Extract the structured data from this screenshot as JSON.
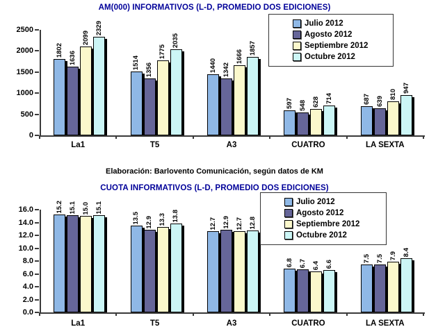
{
  "page": {
    "background": "#FFFFFF"
  },
  "source_note": "Elaboración: Barlovento Comunicación, según datos de KM",
  "colors": {
    "title_text": "#000099",
    "axis_line": "#3A3A3A",
    "label_text": "#000000",
    "bar_border": "#000000",
    "bar_shadow": "#000000",
    "legend_border": "#333333",
    "legend_background": "#FFFFFF",
    "series_fills": [
      "#8FB8E6",
      "#666699",
      "#FBF8CC",
      "#CCF6F6"
    ]
  },
  "legend_items": [
    "Julio 2012",
    "Agosto 2012",
    "Septiembre 2012",
    "Octubre 2012"
  ],
  "chart_data": [
    {
      "type": "bar",
      "title": "AM(000) INFORMATIVOS (L-D, PROMEDIO DOS EDICIONES)",
      "categories": [
        "La1",
        "T5",
        "A3",
        "CUATRO",
        "LA SEXTA"
      ],
      "series": [
        {
          "name": "Julio 2012",
          "values": [
            1802,
            1514,
            1440,
            597,
            687
          ]
        },
        {
          "name": "Agosto 2012",
          "values": [
            1636,
            1356,
            1342,
            548,
            639
          ]
        },
        {
          "name": "Septiembre 2012",
          "values": [
            2099,
            1775,
            1666,
            628,
            810
          ]
        },
        {
          "name": "Octubre 2012",
          "values": [
            2329,
            2035,
            1857,
            714,
            947
          ]
        }
      ],
      "ylim": [
        0,
        2500
      ],
      "yticks": [
        0,
        500,
        1000,
        1500,
        2000,
        2500
      ],
      "ytick_labels": [
        "0",
        "500",
        "1000",
        "1500",
        "2000",
        "2500"
      ],
      "value_label_decimals": 0,
      "value_labels_rotated": true,
      "legend_position": "top-right",
      "grid": false
    },
    {
      "type": "bar",
      "title": "CUOTA INFORMATIVOS (L-D, PROMEDIO DOS EDICIONES)",
      "categories": [
        "La1",
        "T5",
        "A3",
        "CUATRO",
        "LA SEXTA"
      ],
      "series": [
        {
          "name": "Julio 2012",
          "values": [
            15.2,
            13.5,
            12.7,
            6.8,
            7.5
          ]
        },
        {
          "name": "Agosto 2012",
          "values": [
            15.1,
            12.9,
            12.9,
            6.7,
            7.5
          ]
        },
        {
          "name": "Septiembre 2012",
          "values": [
            15.0,
            13.3,
            12.7,
            6.4,
            7.9
          ]
        },
        {
          "name": "Octubre 2012",
          "values": [
            15.1,
            13.8,
            12.8,
            6.6,
            8.4
          ]
        }
      ],
      "ylim": [
        0,
        16
      ],
      "yticks": [
        0,
        2,
        4,
        6,
        8,
        10,
        12,
        14,
        16
      ],
      "ytick_labels": [
        "0.0",
        "2.0",
        "4.0",
        "6.0",
        "8.0",
        "10.0",
        "12.0",
        "14.0",
        "16.0"
      ],
      "value_label_decimals": 1,
      "value_labels_rotated": true,
      "legend_position": "top-right",
      "grid": false
    }
  ]
}
